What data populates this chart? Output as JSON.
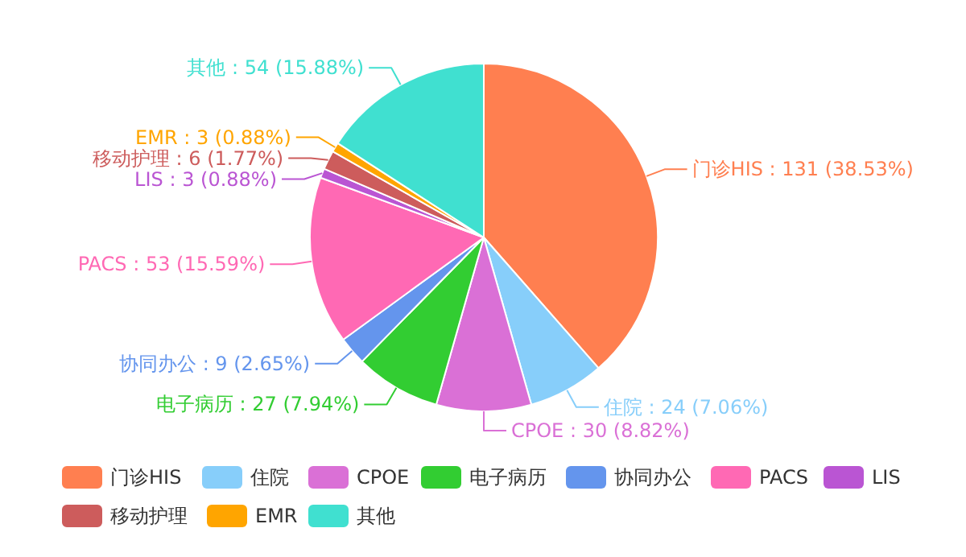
{
  "chart_data": {
    "type": "pie",
    "categories": [
      "门诊HIS",
      "住院",
      "CPOE",
      "电子病历",
      "协同办公",
      "PACS",
      "LIS",
      "移动护理",
      "EMR",
      "其他"
    ],
    "values": [
      131,
      24,
      30,
      27,
      9,
      53,
      3,
      6,
      3,
      54
    ],
    "colors": [
      "#ff7f50",
      "#87cefa",
      "#da70d6",
      "#32cd32",
      "#6495ed",
      "#ff69b4",
      "#ba55d3",
      "#cd5c5c",
      "#ffa500",
      "#40e0d0"
    ],
    "value_labels": [
      "门诊HIS : 131 (38.53%)",
      "住院 : 24 (7.06%)",
      "CPOE : 30 (8.82%)",
      "电子病历 : 27 (7.94%)",
      "协同办公 : 9 (2.65%)",
      "PACS : 53 (15.59%)",
      "LIS : 3 (0.88%)",
      "移动护理 : 6 (1.77%)",
      "EMR : 3 (0.88%)",
      "其他 : 54 (15.88%)"
    ],
    "legend": "bottom"
  }
}
